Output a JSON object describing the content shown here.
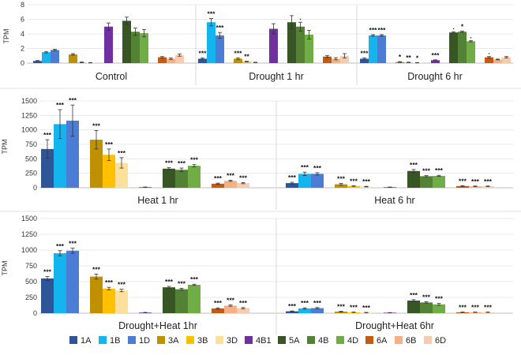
{
  "chart_data": {
    "type": "bar",
    "ylabel": "TPM",
    "legend_position": "bottom",
    "groups": [
      "1A",
      "1B",
      "1D",
      "3A",
      "3B",
      "3D",
      "4B1",
      "5A",
      "4B",
      "4D",
      "6A",
      "6B",
      "6D"
    ],
    "colors": {
      "1A": "#2e5597",
      "1B": "#14b4ef",
      "1D": "#4a7dd3",
      "3A": "#bf9000",
      "3B": "#ffc000",
      "3D": "#ffe09a",
      "4B1": "#7030a0",
      "5A": "#375623",
      "4B": "#548235",
      "4D": "#70ad47",
      "6A": "#c55a11",
      "6B": "#f4b183",
      "6D": "#f8cbad"
    },
    "panels": [
      {
        "name": "top",
        "ylim": [
          0,
          8
        ],
        "yticks": [
          0,
          2,
          4,
          6,
          8
        ],
        "conditions": [
          {
            "title": "Control",
            "values": [
              0.3,
              1.5,
              1.8,
              1.2,
              0.1,
              0.05,
              5.0,
              5.8,
              4.3,
              4.1,
              0.8,
              0.6,
              1.1
            ],
            "errors": [
              0.05,
              0.1,
              0.1,
              0.1,
              0.05,
              0.02,
              0.5,
              0.5,
              0.5,
              0.5,
              0.1,
              0.1,
              0.15
            ],
            "stars": [
              "",
              "",
              "",
              "",
              "",
              "",
              "",
              "",
              "",
              "",
              "",
              "",
              ""
            ]
          },
          {
            "title": "Drought 1 hr",
            "values": [
              0.6,
              5.6,
              3.8,
              0.6,
              0.2,
              0.1,
              4.7,
              5.6,
              5.0,
              3.9,
              0.9,
              0.6,
              1.0
            ],
            "errors": [
              0.1,
              0.5,
              0.4,
              0.1,
              0.05,
              0.03,
              0.7,
              0.9,
              0.6,
              0.6,
              0.15,
              0.15,
              0.3
            ],
            "stars": [
              "***",
              "***",
              "***",
              "***",
              "**",
              "",
              "",
              "",
              ".",
              "",
              "",
              "",
              ""
            ]
          },
          {
            "title": "Drought 6 hr",
            "values": [
              0.6,
              3.8,
              3.8,
              0.15,
              0.1,
              0.05,
              0.4,
              4.2,
              4.3,
              3.0,
              0.8,
              0.5,
              0.8
            ],
            "errors": [
              0.1,
              0.1,
              0.1,
              0.05,
              0.03,
              0.02,
              0.05,
              0.1,
              0.1,
              0.1,
              0.1,
              0.05,
              0.1
            ],
            "stars": [
              "***",
              "***",
              "***",
              "*",
              "**",
              "*",
              "***",
              ".",
              "*",
              ".",
              ".",
              "",
              ""
            ]
          }
        ]
      },
      {
        "name": "middle",
        "ylim": [
          0,
          1500
        ],
        "yticks": [
          0,
          250,
          500,
          750,
          1000,
          1250,
          1500
        ],
        "conditions": [
          {
            "title": "Heat 1 hr",
            "values": [
              670,
              1100,
              1160,
              830,
              570,
              430,
              10,
              330,
              310,
              380,
              70,
              120,
              80
            ],
            "errors": [
              160,
              250,
              270,
              160,
              100,
              90,
              3,
              20,
              30,
              20,
              10,
              10,
              10
            ],
            "stars": [
              "***",
              "***",
              "***",
              "***",
              "***",
              "***",
              "",
              "***",
              "***",
              "***",
              "***",
              "***",
              "***"
            ]
          },
          {
            "title": "Heat 6 hr",
            "values": [
              80,
              240,
              240,
              60,
              30,
              20,
              10,
              290,
              200,
              205,
              30,
              25,
              25
            ],
            "errors": [
              15,
              30,
              20,
              15,
              5,
              5,
              3,
              25,
              10,
              10,
              5,
              5,
              5
            ],
            "stars": [
              "***",
              "***",
              "***",
              "***",
              "***",
              "***",
              "",
              "***",
              "***",
              "***",
              "***",
              "***",
              "***"
            ]
          }
        ]
      },
      {
        "name": "bottom",
        "ylim": [
          0,
          1500
        ],
        "yticks": [
          0,
          250,
          500,
          750,
          1000,
          1250,
          1500
        ],
        "conditions": [
          {
            "title": "Drought+Heat 1hr",
            "values": [
              550,
              950,
              990,
              580,
              390,
              360,
              10,
              410,
              380,
              450,
              75,
              120,
              80
            ],
            "errors": [
              30,
              40,
              40,
              40,
              20,
              20,
              3,
              15,
              15,
              10,
              10,
              10,
              10
            ],
            "stars": [
              "***",
              "***",
              "***",
              "***",
              "***",
              "***",
              "",
              "***",
              "***",
              "***",
              "***",
              "***",
              "***"
            ]
          },
          {
            "title": "Drought+Heat 6hr",
            "values": [
              30,
              75,
              80,
              25,
              15,
              10,
              8,
              200,
              170,
              140,
              15,
              15,
              15
            ],
            "errors": [
              5,
              10,
              10,
              5,
              3,
              3,
              2,
              15,
              10,
              15,
              3,
              3,
              3
            ],
            "stars": [
              "***",
              "***",
              "***",
              "***",
              "***",
              "***",
              "",
              "***",
              "***",
              "***",
              "***",
              "***",
              "***"
            ]
          }
        ]
      }
    ]
  }
}
